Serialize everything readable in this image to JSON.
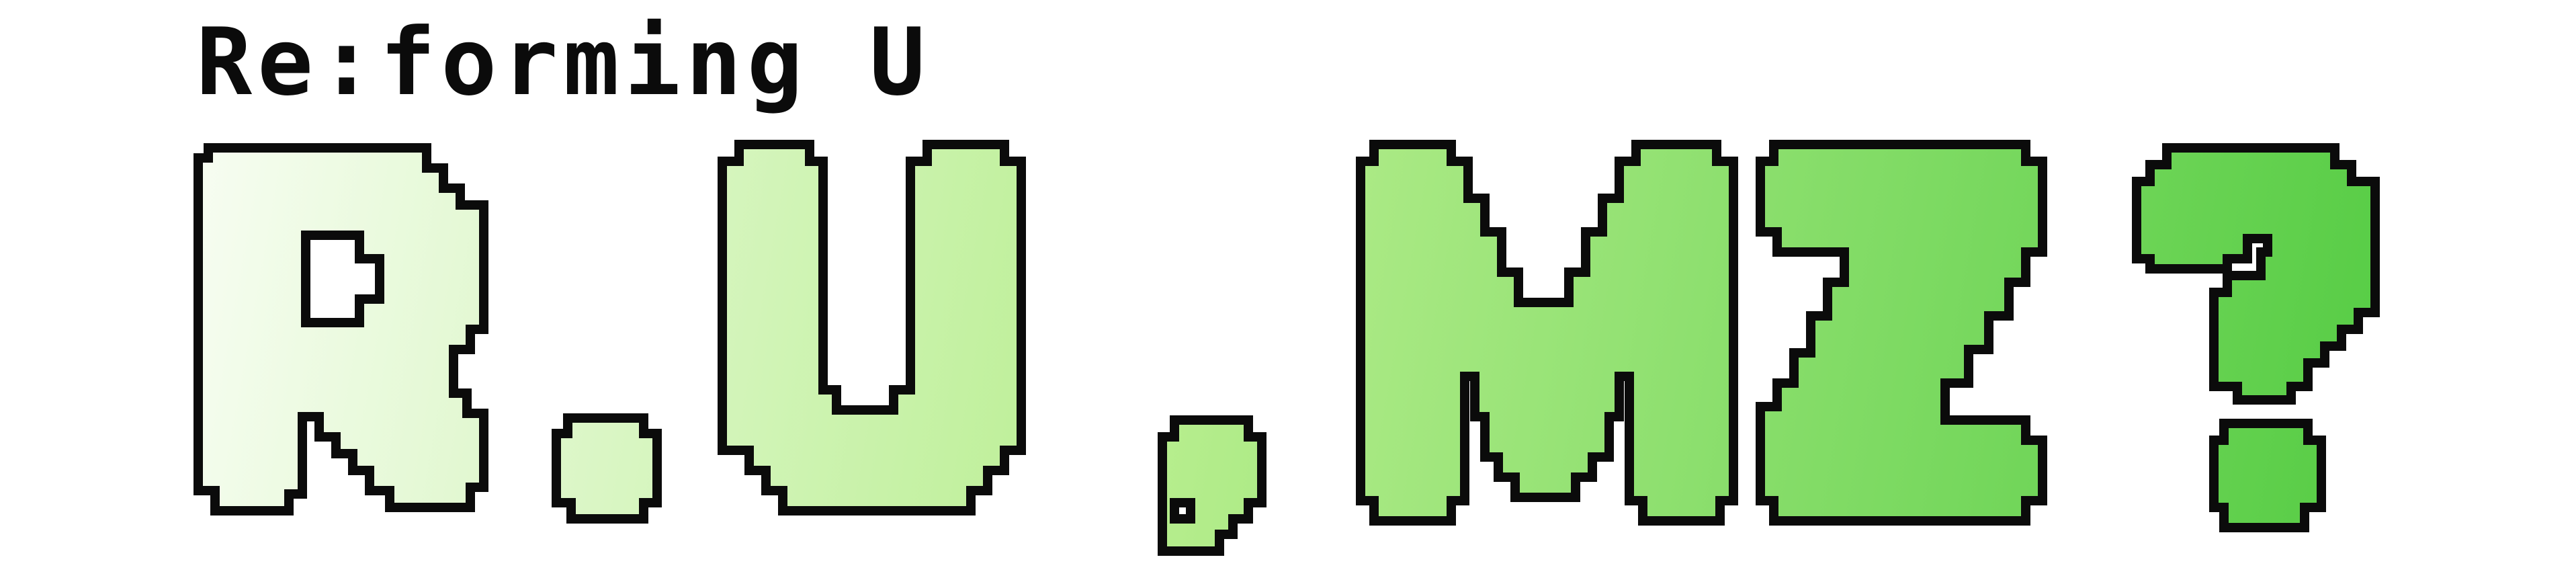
{
  "logo": {
    "subtitle": "Re:forming U",
    "title": "R.U.MZ?",
    "colors": {
      "outline": "#0b0b0b",
      "gradient_start": "#f7fdf2",
      "gradient_mid": "#b7ee8e",
      "gradient_end": "#55cc44"
    }
  }
}
